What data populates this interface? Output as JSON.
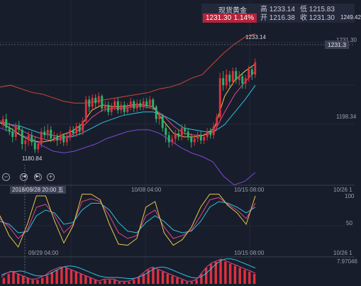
{
  "header": {
    "instrument_name": "现货黄金",
    "last_price": "1231.30",
    "change_pct": "1.14%",
    "high": "高 1233.14",
    "low": "低 1215.83",
    "open": "开 1216.38",
    "close": "收 1231.30"
  },
  "right_axis": {
    "top_value": "1249.42",
    "current_tag": "1231.3",
    "mid_value": "1198.34",
    "ind1_top": "100",
    "ind1_mid": "50",
    "ind2_top": "7.97046"
  },
  "annotations": {
    "peak_label": "1233.14",
    "trough_label": "1180.84",
    "peak_label_2": "1231.30"
  },
  "controls": {
    "zoom_out": "−",
    "prev": "|◀",
    "next": "▶|",
    "zoom_in": "+"
  },
  "x_axis": {
    "cursor_date": "2018/09/28 20:00 五",
    "t1": "10/08 04:00",
    "t2": "10/15 08:00",
    "t3": "10/26 1",
    "b1": "09/29 04:00",
    "b2": "10/15 08:00",
    "b3": "10/26 1"
  },
  "colors": {
    "up": "#e0303f",
    "down": "#2fb36b",
    "ma_fast": "#e9c84a",
    "ma_mid": "#d84a8c",
    "ma_slow": "#2ec2e0",
    "boll_upper": "#c84a3a",
    "boll_lower": "#7a4ad0"
  },
  "chart_data": {
    "type": "candlestick",
    "price_range": [
      1175,
      1250
    ],
    "candles": [
      [
        1196,
        1199,
        1201,
        1194
      ],
      [
        1199,
        1194,
        1202,
        1192
      ],
      [
        1194,
        1192,
        1197,
        1190
      ],
      [
        1192,
        1189,
        1194,
        1186
      ],
      [
        1189,
        1195,
        1197,
        1187
      ],
      [
        1195,
        1193,
        1198,
        1191
      ],
      [
        1193,
        1185,
        1194,
        1182
      ],
      [
        1185,
        1187,
        1189,
        1181
      ],
      [
        1187,
        1190,
        1192,
        1184
      ],
      [
        1190,
        1186,
        1192,
        1184
      ],
      [
        1186,
        1182,
        1189,
        1180
      ],
      [
        1182,
        1185,
        1187,
        1180
      ],
      [
        1185,
        1192,
        1194,
        1183
      ],
      [
        1192,
        1190,
        1195,
        1188
      ],
      [
        1190,
        1193,
        1196,
        1188
      ],
      [
        1193,
        1188,
        1195,
        1186
      ],
      [
        1188,
        1189,
        1192,
        1186
      ],
      [
        1189,
        1187,
        1191,
        1184
      ],
      [
        1187,
        1190,
        1192,
        1185
      ],
      [
        1190,
        1186,
        1191,
        1184
      ],
      [
        1186,
        1189,
        1191,
        1184
      ],
      [
        1189,
        1193,
        1195,
        1187
      ],
      [
        1193,
        1191,
        1195,
        1189
      ],
      [
        1191,
        1195,
        1197,
        1189
      ],
      [
        1195,
        1192,
        1197,
        1190
      ],
      [
        1192,
        1198,
        1200,
        1190
      ],
      [
        1198,
        1210,
        1212,
        1197
      ],
      [
        1210,
        1206,
        1212,
        1203
      ],
      [
        1206,
        1211,
        1213,
        1204
      ],
      [
        1211,
        1208,
        1213,
        1205
      ],
      [
        1208,
        1212,
        1214,
        1206
      ],
      [
        1212,
        1205,
        1213,
        1203
      ],
      [
        1205,
        1207,
        1209,
        1203
      ],
      [
        1207,
        1203,
        1209,
        1201
      ],
      [
        1203,
        1206,
        1208,
        1201
      ],
      [
        1206,
        1209,
        1211,
        1204
      ],
      [
        1209,
        1204,
        1211,
        1202
      ],
      [
        1204,
        1207,
        1209,
        1202
      ],
      [
        1207,
        1203,
        1209,
        1201
      ],
      [
        1203,
        1206,
        1208,
        1202
      ],
      [
        1206,
        1209,
        1211,
        1204
      ],
      [
        1209,
        1205,
        1210,
        1203
      ],
      [
        1205,
        1208,
        1210,
        1203
      ],
      [
        1208,
        1206,
        1210,
        1204
      ],
      [
        1206,
        1209,
        1211,
        1204
      ],
      [
        1209,
        1207,
        1211,
        1205
      ],
      [
        1207,
        1210,
        1212,
        1205
      ],
      [
        1210,
        1206,
        1211,
        1204
      ],
      [
        1206,
        1199,
        1207,
        1197
      ],
      [
        1199,
        1201,
        1203,
        1196
      ],
      [
        1201,
        1194,
        1202,
        1192
      ],
      [
        1194,
        1190,
        1196,
        1186
      ],
      [
        1190,
        1186,
        1192,
        1183
      ],
      [
        1186,
        1188,
        1190,
        1184
      ],
      [
        1188,
        1191,
        1193,
        1185
      ],
      [
        1191,
        1189,
        1193,
        1187
      ],
      [
        1189,
        1194,
        1196,
        1187
      ],
      [
        1194,
        1192,
        1196,
        1190
      ],
      [
        1192,
        1189,
        1194,
        1187
      ],
      [
        1189,
        1186,
        1191,
        1183
      ],
      [
        1186,
        1188,
        1190,
        1184
      ],
      [
        1188,
        1190,
        1192,
        1186
      ],
      [
        1190,
        1187,
        1192,
        1185
      ],
      [
        1187,
        1189,
        1191,
        1185
      ],
      [
        1189,
        1192,
        1194,
        1187
      ],
      [
        1192,
        1190,
        1194,
        1188
      ],
      [
        1190,
        1195,
        1197,
        1188
      ],
      [
        1195,
        1200,
        1202,
        1193
      ],
      [
        1200,
        1222,
        1225,
        1199
      ],
      [
        1222,
        1218,
        1226,
        1215
      ],
      [
        1218,
        1224,
        1227,
        1216
      ],
      [
        1224,
        1220,
        1226,
        1217
      ],
      [
        1220,
        1226,
        1228,
        1218
      ],
      [
        1226,
        1221,
        1228,
        1219
      ],
      [
        1221,
        1223,
        1226,
        1218
      ],
      [
        1223,
        1219,
        1225,
        1216
      ],
      [
        1219,
        1222,
        1224,
        1216
      ],
      [
        1222,
        1227,
        1229,
        1220
      ],
      [
        1227,
        1224,
        1229,
        1221
      ],
      [
        1224,
        1231,
        1233,
        1222
      ]
    ],
    "bollinger": {
      "upper": [
        1217,
        1218,
        1216,
        1214,
        1213,
        1211,
        1209,
        1208,
        1208,
        1209,
        1210,
        1211,
        1212,
        1213,
        1214,
        1216,
        1217,
        1219,
        1222,
        1224,
        1230,
        1236,
        1241,
        1245,
        1247
      ],
      "lower": [
        1194,
        1192,
        1190,
        1188,
        1184,
        1181,
        1180,
        1181,
        1183,
        1185,
        1188,
        1190,
        1192,
        1193,
        1193,
        1191,
        1187,
        1183,
        1180,
        1178,
        1175,
        1167,
        1162,
        1164,
        1169
      ]
    },
    "ma": {
      "fast": [
        1197,
        1194,
        1190,
        1187,
        1186,
        1187,
        1190,
        1192,
        1196,
        1204,
        1207,
        1206,
        1206,
        1207,
        1207,
        1206,
        1198,
        1191,
        1189,
        1189,
        1190,
        1194,
        1212,
        1221,
        1226,
        1230
      ],
      "mid": [
        1198,
        1196,
        1193,
        1190,
        1188,
        1187,
        1188,
        1190,
        1194,
        1200,
        1204,
        1205,
        1205,
        1206,
        1206,
        1205,
        1201,
        1195,
        1191,
        1190,
        1190,
        1192,
        1203,
        1213,
        1220,
        1226
      ],
      "slow": [
        1197,
        1196,
        1195,
        1193,
        1191,
        1190,
        1189,
        1189,
        1191,
        1194,
        1197,
        1199,
        1201,
        1202,
        1203,
        1203,
        1201,
        1198,
        1194,
        1193,
        1192,
        1192,
        1196,
        1203,
        1210,
        1218
      ]
    },
    "kdj": {
      "k": [
        55,
        40,
        20,
        35,
        75,
        80,
        60,
        30,
        45,
        85,
        90,
        85,
        60,
        30,
        20,
        25,
        60,
        70,
        40,
        20,
        25,
        35,
        60,
        88,
        92,
        80,
        70,
        55,
        82
      ],
      "d": [
        50,
        45,
        30,
        32,
        60,
        70,
        65,
        45,
        48,
        70,
        82,
        82,
        70,
        48,
        33,
        30,
        48,
        60,
        50,
        35,
        30,
        33,
        50,
        75,
        85,
        82,
        75,
        65,
        75
      ],
      "j": [
        60,
        25,
        5,
        45,
        95,
        95,
        50,
        12,
        42,
        98,
        98,
        88,
        45,
        10,
        8,
        20,
        75,
        85,
        30,
        8,
        18,
        40,
        75,
        98,
        98,
        78,
        65,
        45,
        95
      ]
    },
    "macd_hist": [
      3,
      5,
      6,
      5,
      4,
      3,
      2,
      2,
      3,
      4,
      6,
      7,
      8,
      8,
      7,
      6,
      5,
      4,
      3,
      2,
      1,
      2,
      2,
      2,
      1,
      1,
      1,
      2,
      3,
      5,
      7,
      8,
      7,
      6,
      5,
      4,
      3,
      2,
      1,
      1,
      2,
      5,
      8,
      10,
      11,
      12,
      11,
      10,
      9,
      8,
      7,
      6,
      5
    ]
  }
}
